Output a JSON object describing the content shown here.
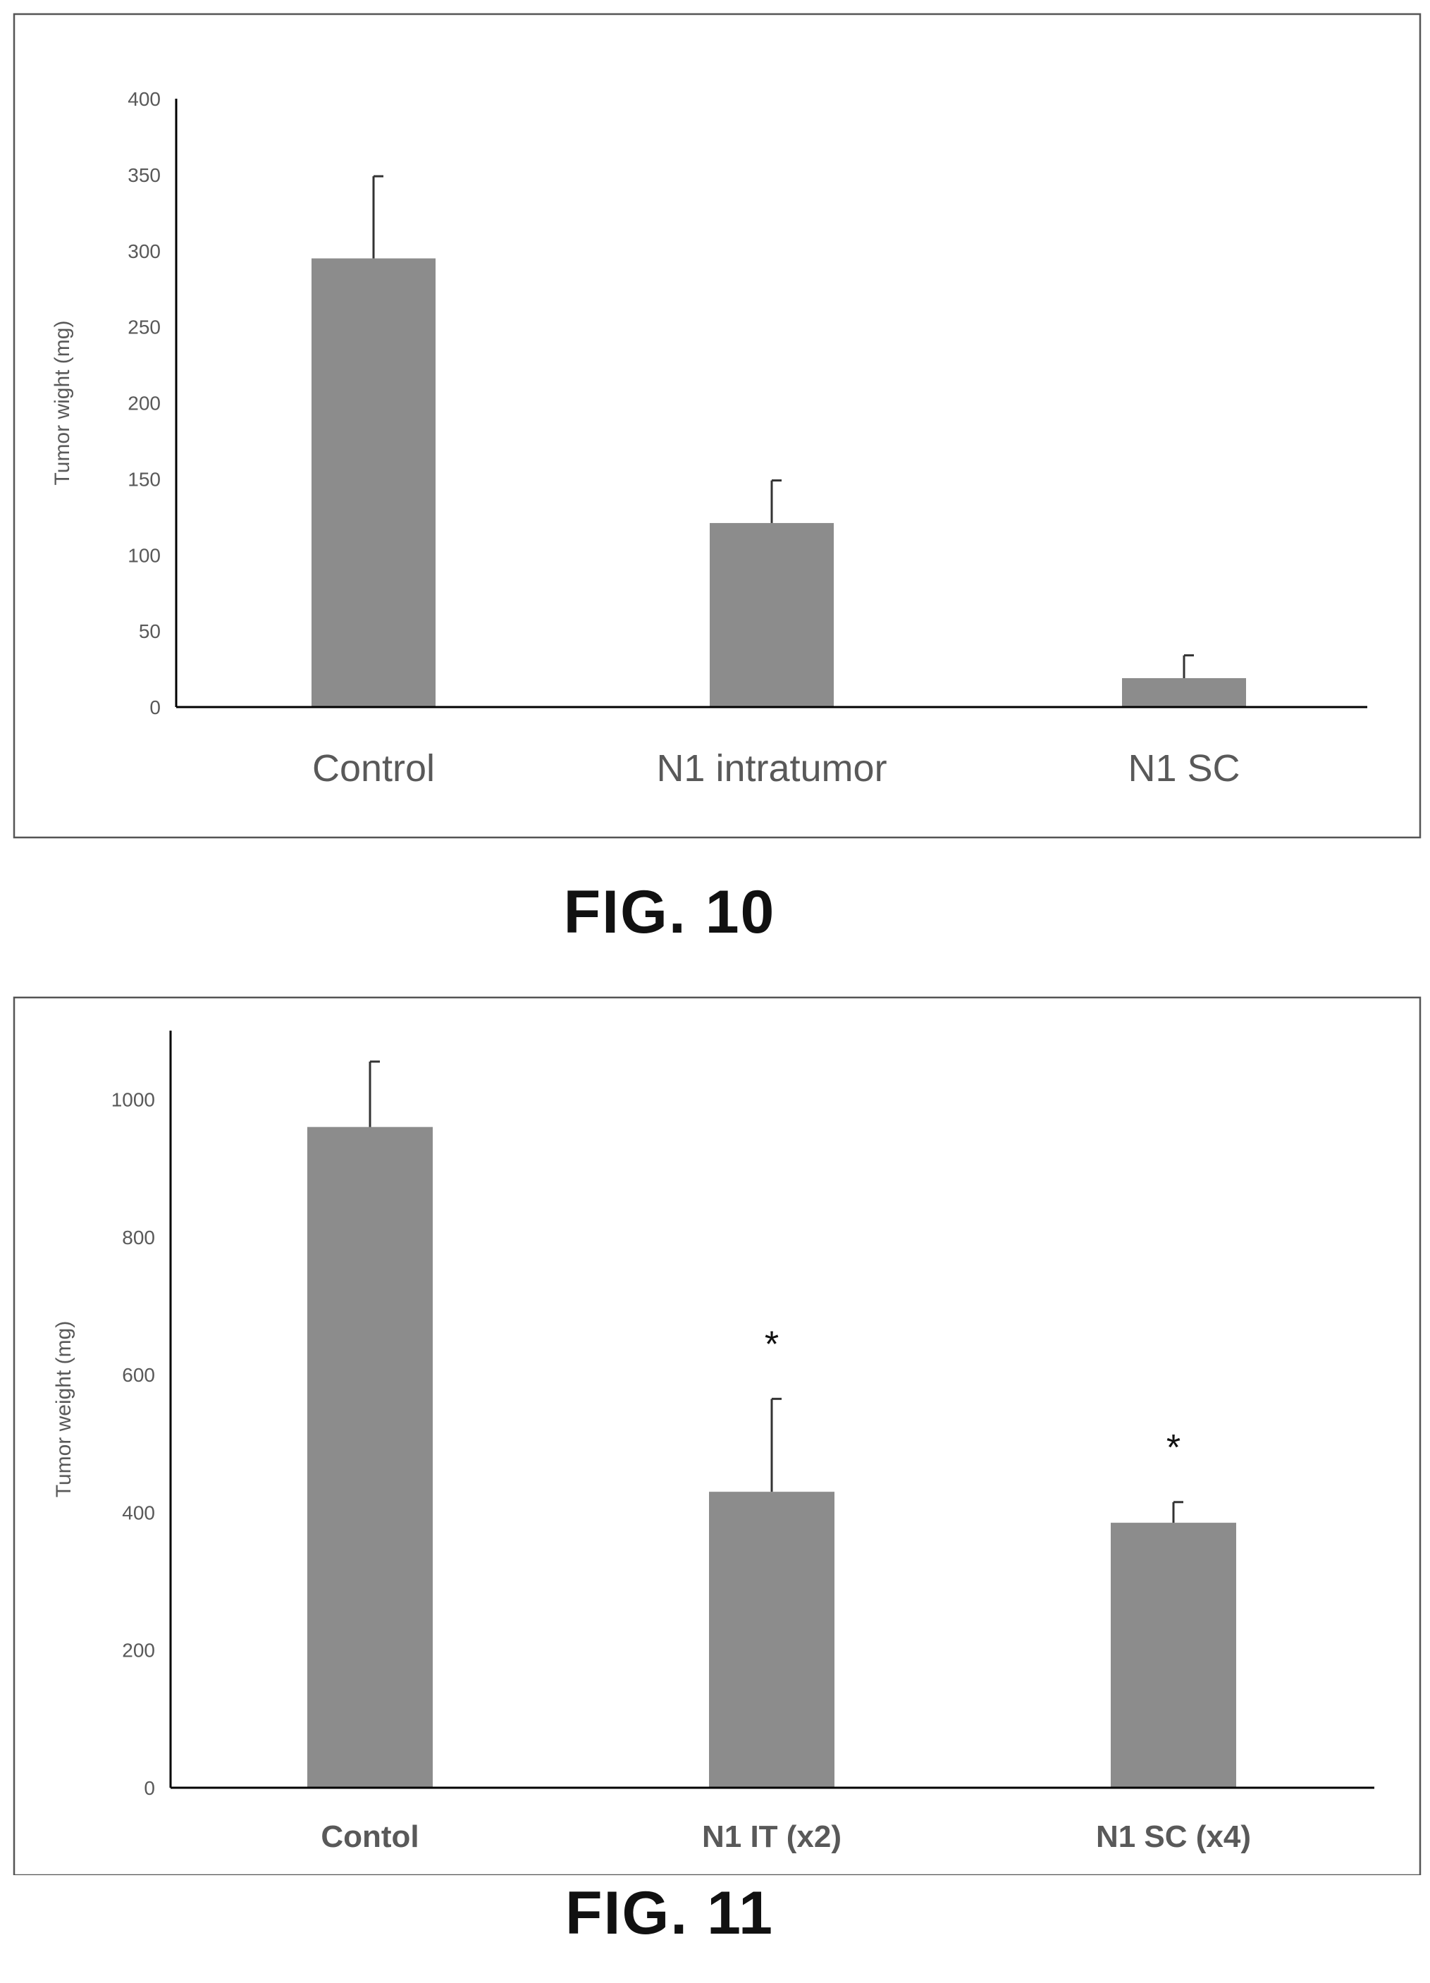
{
  "figures": [
    {
      "caption": "FIG. 10",
      "chart_data": {
        "type": "bar",
        "categories": [
          "Control",
          "N1 intratumor",
          "N1 SC"
        ],
        "values": [
          295,
          121,
          19
        ],
        "errors": [
          54,
          28,
          15
        ],
        "ylabel": "Tumor wight (mg)",
        "xlabel": "",
        "ylim": [
          0,
          400
        ],
        "yticks": [
          0,
          50,
          100,
          150,
          200,
          250,
          300,
          350,
          400
        ],
        "annotations": [
          "",
          "",
          ""
        ],
        "bar_color": "#8c8c8c",
        "grid": false,
        "legend": "none"
      }
    },
    {
      "caption": "FIG. 11",
      "chart_data": {
        "type": "bar",
        "categories": [
          "Contol",
          "N1 IT (x2)",
          "N1 SC (x4)"
        ],
        "values": [
          960,
          430,
          385
        ],
        "errors": [
          95,
          135,
          30
        ],
        "ylabel": "Tumor weight (mg)",
        "xlabel": "",
        "ylim": [
          0,
          1100
        ],
        "yticks": [
          0,
          200,
          400,
          600,
          800,
          1000
        ],
        "annotations": [
          "",
          "*",
          "*"
        ],
        "bar_color": "#8c8c8c",
        "grid": false,
        "legend": "none"
      }
    }
  ]
}
